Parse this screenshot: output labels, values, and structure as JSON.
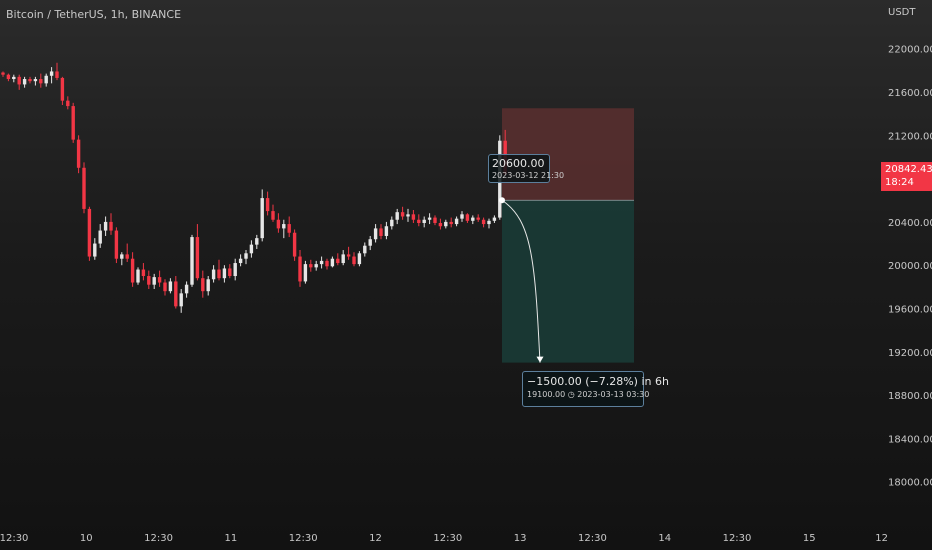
{
  "header": {
    "symbol": "Bitcoin / TetherUS",
    "interval": "1h",
    "exchange": "BINANCE"
  },
  "price_scale": {
    "currency": "USDT",
    "last_price": "20842.43",
    "countdown": "18:24"
  },
  "colors": {
    "up": "#e6e6e6",
    "down": "#f23645",
    "stop_zone": "#5a2f2f",
    "target_zone": "#1a3b36",
    "tag_border": "#5c7f9c"
  },
  "chart_data": {
    "type": "candlestick",
    "y_ticks": [
      22000,
      21600,
      21200,
      20800,
      20400,
      20000,
      19600,
      19200,
      18800,
      18400,
      18000
    ],
    "ylim": [
      17600,
      22450
    ],
    "x_ticks": [
      "12:30",
      "10",
      "12:30",
      "11",
      "12:30",
      "12",
      "12:30",
      "13",
      "12:30",
      "14",
      "12:30",
      "15",
      "12"
    ],
    "candles": [
      [
        21780,
        21790,
        21740,
        21760
      ],
      [
        21760,
        21770,
        21700,
        21720
      ],
      [
        21720,
        21760,
        21690,
        21740
      ],
      [
        21740,
        21760,
        21620,
        21670
      ],
      [
        21670,
        21740,
        21640,
        21720
      ],
      [
        21720,
        21740,
        21680,
        21700
      ],
      [
        21700,
        21740,
        21660,
        21720
      ],
      [
        21720,
        21770,
        21640,
        21680
      ],
      [
        21680,
        21770,
        21650,
        21750
      ],
      [
        21750,
        21830,
        21680,
        21790
      ],
      [
        21790,
        21870,
        21710,
        21730
      ],
      [
        21730,
        21740,
        21480,
        21520
      ],
      [
        21520,
        21560,
        21440,
        21470
      ],
      [
        21470,
        21500,
        21130,
        21160
      ],
      [
        21160,
        21200,
        20850,
        20900
      ],
      [
        20900,
        20950,
        20480,
        20520
      ],
      [
        20520,
        20540,
        20040,
        20080
      ],
      [
        20080,
        20250,
        20050,
        20200
      ],
      [
        20200,
        20380,
        20160,
        20320
      ],
      [
        20320,
        20450,
        20270,
        20400
      ],
      [
        20400,
        20480,
        20280,
        20320
      ],
      [
        20320,
        20350,
        20020,
        20060
      ],
      [
        20060,
        20120,
        20000,
        20100
      ],
      [
        20100,
        20200,
        20030,
        20060
      ],
      [
        20060,
        20120,
        19800,
        19840
      ],
      [
        19840,
        19980,
        19820,
        19960
      ],
      [
        19960,
        20020,
        19860,
        19900
      ],
      [
        19900,
        19950,
        19780,
        19820
      ],
      [
        19820,
        19920,
        19780,
        19890
      ],
      [
        19890,
        19950,
        19800,
        19840
      ],
      [
        19840,
        19870,
        19720,
        19760
      ],
      [
        19760,
        19880,
        19740,
        19850
      ],
      [
        19850,
        19900,
        19600,
        19620
      ],
      [
        19620,
        19780,
        19560,
        19740
      ],
      [
        19740,
        19850,
        19700,
        19820
      ],
      [
        19820,
        20280,
        19800,
        20260
      ],
      [
        20260,
        20380,
        19860,
        19880
      ],
      [
        19880,
        19950,
        19700,
        19760
      ],
      [
        19760,
        19900,
        19720,
        19870
      ],
      [
        19870,
        20000,
        19840,
        19960
      ],
      [
        19960,
        20050,
        19860,
        19880
      ],
      [
        19880,
        20000,
        19840,
        19970
      ],
      [
        19970,
        20010,
        19880,
        19900
      ],
      [
        19900,
        20060,
        19860,
        20020
      ],
      [
        20020,
        20100,
        19990,
        20060
      ],
      [
        20060,
        20140,
        20010,
        20110
      ],
      [
        20110,
        20230,
        20070,
        20190
      ],
      [
        20190,
        20280,
        20150,
        20250
      ],
      [
        20250,
        20700,
        20220,
        20620
      ],
      [
        20620,
        20680,
        20460,
        20500
      ],
      [
        20500,
        20560,
        20400,
        20420
      ],
      [
        20420,
        20480,
        20300,
        20340
      ],
      [
        20340,
        20420,
        20250,
        20380
      ],
      [
        20380,
        20450,
        20260,
        20300
      ],
      [
        20300,
        20330,
        20040,
        20080
      ],
      [
        20080,
        20140,
        19800,
        19850
      ],
      [
        19850,
        20040,
        19830,
        20010
      ],
      [
        20010,
        20050,
        19940,
        19980
      ],
      [
        19980,
        20040,
        19950,
        20010
      ],
      [
        20010,
        20080,
        19970,
        20040
      ],
      [
        20040,
        20060,
        19960,
        19990
      ],
      [
        19990,
        20080,
        19980,
        20060
      ],
      [
        20060,
        20110,
        20000,
        20020
      ],
      [
        20020,
        20140,
        20000,
        20100
      ],
      [
        20100,
        20170,
        20050,
        20080
      ],
      [
        20080,
        20120,
        19990,
        20010
      ],
      [
        20010,
        20130,
        19990,
        20110
      ],
      [
        20110,
        20210,
        20080,
        20180
      ],
      [
        20180,
        20270,
        20140,
        20240
      ],
      [
        20240,
        20380,
        20210,
        20340
      ],
      [
        20340,
        20380,
        20240,
        20270
      ],
      [
        20270,
        20400,
        20240,
        20360
      ],
      [
        20360,
        20450,
        20330,
        20420
      ],
      [
        20420,
        20520,
        20380,
        20490
      ],
      [
        20490,
        20540,
        20420,
        20450
      ],
      [
        20450,
        20520,
        20400,
        20470
      ],
      [
        20470,
        20510,
        20390,
        20420
      ],
      [
        20420,
        20470,
        20360,
        20390
      ],
      [
        20390,
        20450,
        20350,
        20420
      ],
      [
        20420,
        20480,
        20380,
        20440
      ],
      [
        20440,
        20460,
        20370,
        20390
      ],
      [
        20390,
        20430,
        20330,
        20360
      ],
      [
        20360,
        20420,
        20340,
        20400
      ],
      [
        20400,
        20440,
        20350,
        20380
      ],
      [
        20380,
        20450,
        20360,
        20430
      ],
      [
        20430,
        20500,
        20400,
        20470
      ],
      [
        20470,
        20480,
        20390,
        20410
      ],
      [
        20410,
        20460,
        20380,
        20440
      ],
      [
        20440,
        20470,
        20400,
        20420
      ],
      [
        20420,
        20440,
        20350,
        20380
      ],
      [
        20380,
        20430,
        20340,
        20410
      ],
      [
        20410,
        20460,
        20390,
        20440
      ],
      [
        20440,
        21200,
        20420,
        21150
      ],
      [
        21150,
        21250,
        20830,
        20842
      ]
    ],
    "position": {
      "type": "short",
      "entry": 20600,
      "stop": 21450,
      "target": 19100,
      "entry_label": {
        "price": "20600.00",
        "time": "2023-03-12 21:30"
      },
      "result_label": {
        "line1": "−1500.00 (−7.28%) in 6h",
        "target_price": "19100.00",
        "time": "2023-03-13  03:30"
      }
    }
  }
}
